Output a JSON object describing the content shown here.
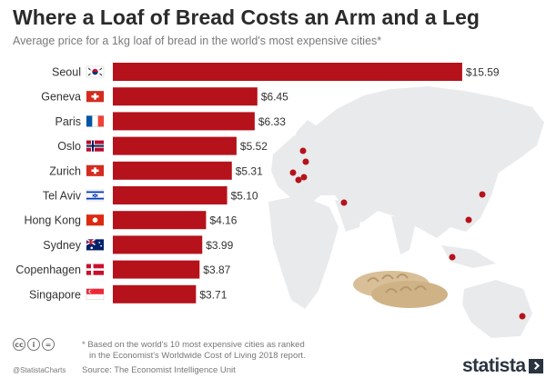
{
  "chart_data": {
    "type": "bar",
    "orientation": "horizontal",
    "title": "Where a Loaf of Bread Costs an Arm and a Leg",
    "subtitle": "Average price for a 1kg loaf of bread in the world's most expensive cities*",
    "categories": [
      "Seoul",
      "Geneva",
      "Paris",
      "Oslo",
      "Zurich",
      "Tel Aviv",
      "Hong Kong",
      "Sydney",
      "Copenhagen",
      "Singapore"
    ],
    "values": [
      15.59,
      6.45,
      6.33,
      5.52,
      5.31,
      5.1,
      4.16,
      3.99,
      3.87,
      3.71
    ],
    "value_labels": [
      "$15.59",
      "$6.45",
      "$6.33",
      "$5.52",
      "$5.31",
      "$5.10",
      "$4.16",
      "$3.99",
      "$3.87",
      "$3.71"
    ],
    "flags": [
      "south-korea-flag-icon",
      "switzerland-flag-icon",
      "france-flag-icon",
      "norway-flag-icon",
      "switzerland-flag-icon",
      "israel-flag-icon",
      "hong-kong-flag-icon",
      "australia-flag-icon",
      "denmark-flag-icon",
      "singapore-flag-icon"
    ],
    "xlim": [
      0,
      16
    ],
    "xlabel": "",
    "ylabel": "",
    "bar_color": "#b5121b",
    "grid": false
  },
  "footer": {
    "note_line1": "* Based on the world's 10 most expensive cities as ranked",
    "note_line2": "in the Economist's Worldwide Cost of Living 2018 report.",
    "source": "Source: The Economist Intelligence Unit",
    "handle": "@StatistaCharts",
    "brand": "statista",
    "cc_icons": [
      "cc",
      "i",
      "="
    ]
  },
  "colors": {
    "bar": "#b5121b",
    "map": "#e9eaec",
    "city_dot": "#b5121b",
    "bread": "#d9bf97"
  }
}
